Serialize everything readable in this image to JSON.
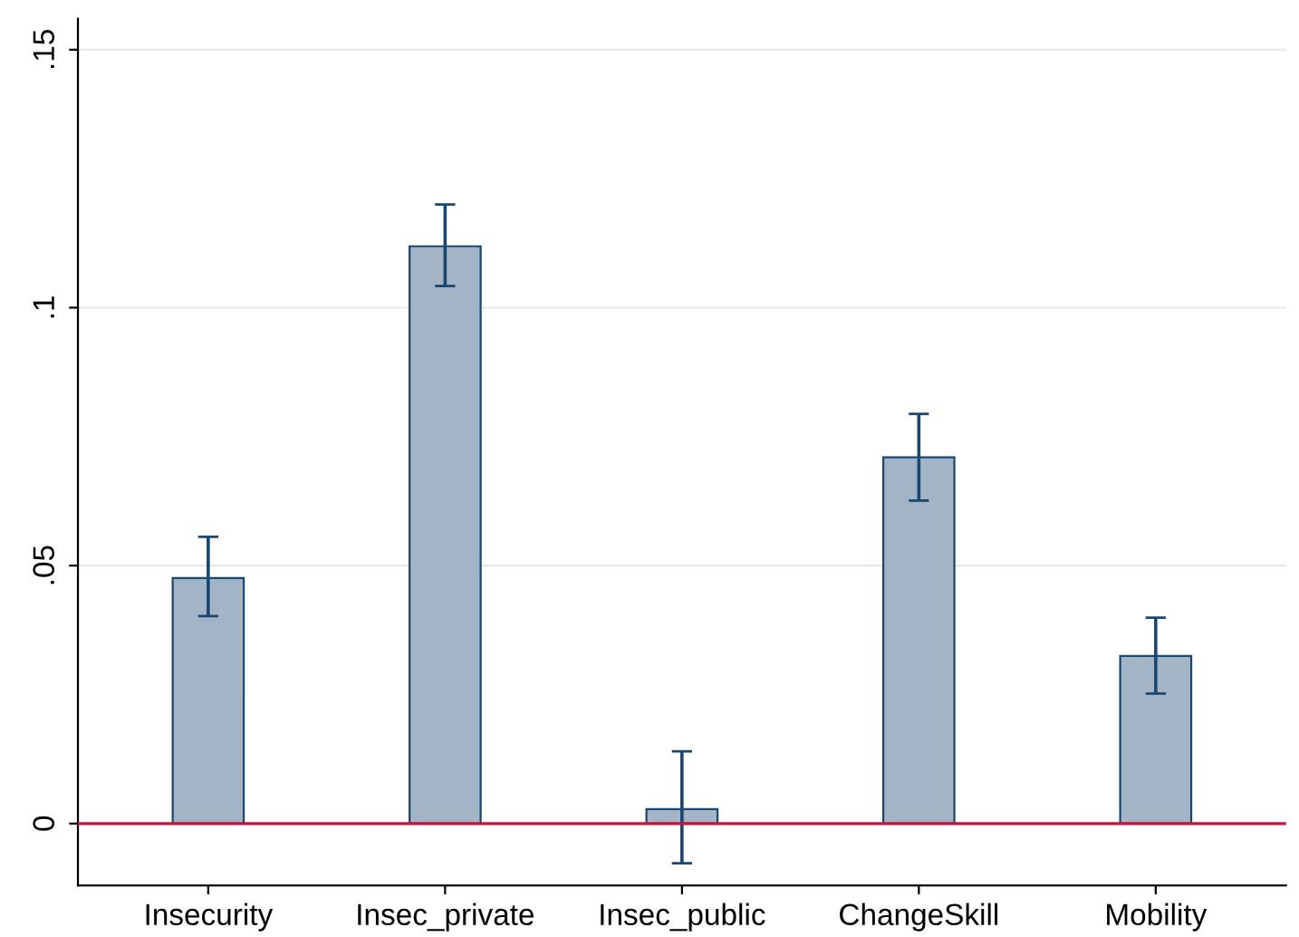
{
  "chart_data": {
    "type": "bar",
    "categories": [
      "Insecurity",
      "Insec_private",
      "Insec_public",
      "ChangeSkill",
      "Mobility"
    ],
    "values": [
      0.0476,
      0.1119,
      0.0028,
      0.071,
      0.0325
    ],
    "errors": [
      [
        0.0402,
        0.0556
      ],
      [
        0.1042,
        0.12
      ],
      [
        -0.0077,
        0.014
      ],
      [
        0.0626,
        0.0794
      ],
      [
        0.0252,
        0.0399
      ]
    ],
    "color": "#a3b4c6",
    "ylim": [
      -0.012,
      0.156
    ],
    "yticks": [
      {
        "value": 0,
        "label": "0"
      },
      {
        "value": 0.05,
        "label": ".05"
      },
      {
        "value": 0.1,
        "label": ".1"
      },
      {
        "value": 0.15,
        "label": ".15"
      }
    ],
    "grid": "y",
    "ref_lines": [
      {
        "axis": "y",
        "value": 0,
        "color": "#d0103a"
      }
    ]
  }
}
